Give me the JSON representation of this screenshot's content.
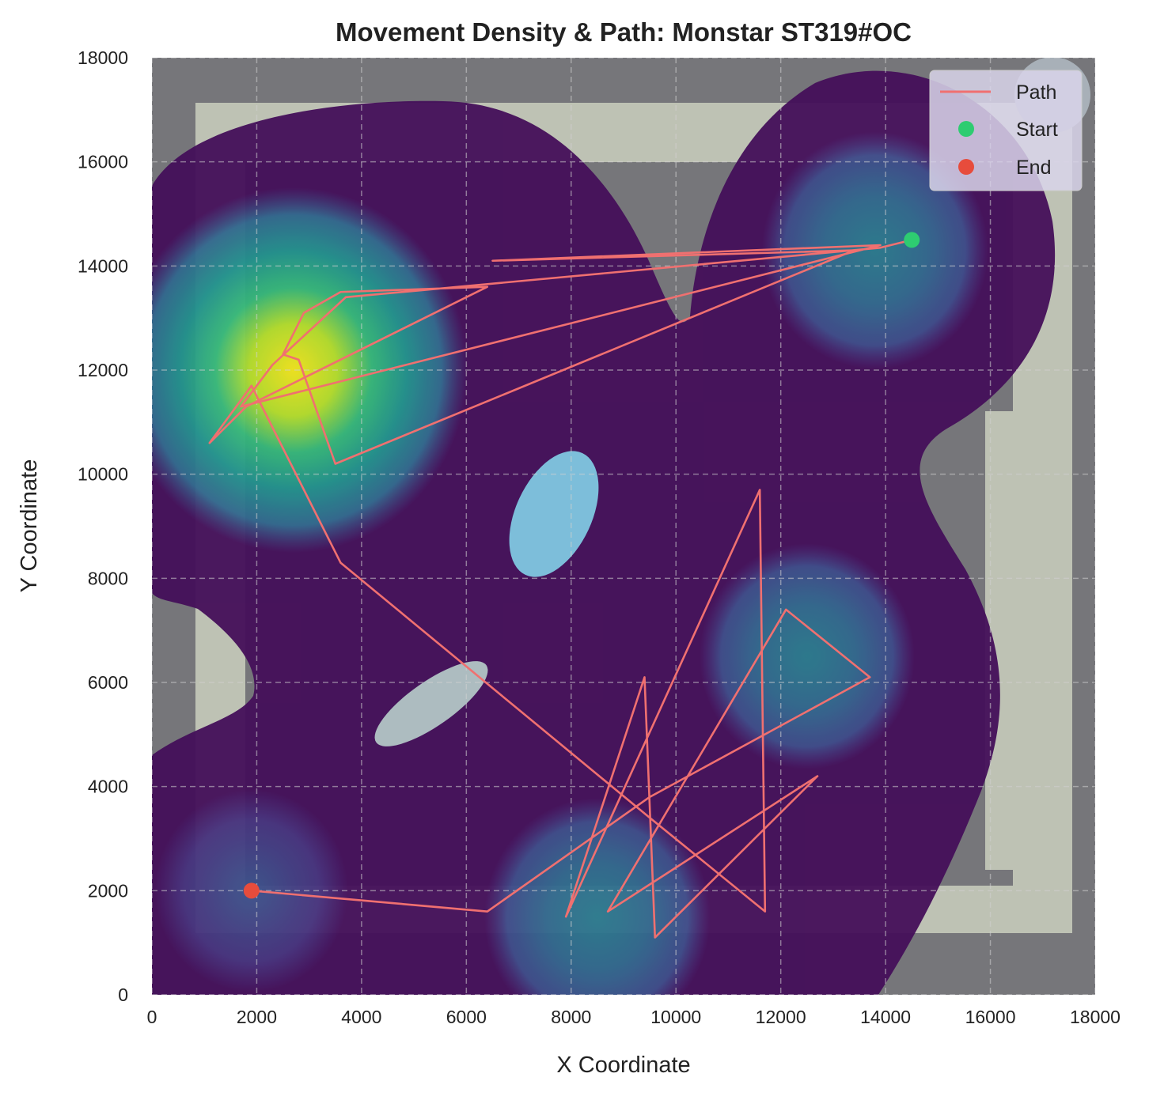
{
  "chart_data": {
    "type": "line",
    "title": "Movement Density & Path: Monstar ST319#OC",
    "xlabel": "X Coordinate",
    "ylabel": "Y Coordinate",
    "xlim": [
      0,
      18000
    ],
    "ylim": [
      0,
      18000
    ],
    "xticks": [
      "0",
      "2000",
      "4000",
      "6000",
      "8000",
      "10000",
      "12000",
      "14000",
      "16000",
      "18000"
    ],
    "yticks": [
      "0",
      "2000",
      "4000",
      "6000",
      "8000",
      "10000",
      "12000",
      "14000",
      "16000",
      "18000"
    ],
    "grid": true,
    "legend_position": "top-right",
    "legend": [
      {
        "label": "Path",
        "kind": "line",
        "color": "#f07070"
      },
      {
        "label": "Start",
        "kind": "marker",
        "color": "#2ecc71"
      },
      {
        "label": "End",
        "kind": "marker",
        "color": "#e74c3c"
      }
    ],
    "background": "map with viewed density heatmap (viridis)",
    "path_color": "#f07070",
    "start": {
      "x": 14500,
      "y": 14500,
      "color": "#2ecc71"
    },
    "end": {
      "x": 1900,
      "y": 2000,
      "color": "#e74c3c"
    },
    "density_peaks": [
      {
        "x": 2700,
        "y": 12000,
        "level": 1.0
      },
      {
        "x": 13800,
        "y": 14300,
        "level": 0.45
      },
      {
        "x": 8500,
        "y": 1500,
        "level": 0.45
      },
      {
        "x": 12500,
        "y": 6500,
        "level": 0.4
      },
      {
        "x": 1900,
        "y": 2000,
        "level": 0.3
      }
    ],
    "path": [
      {
        "x": 14500,
        "y": 14500
      },
      {
        "x": 13900,
        "y": 14350
      },
      {
        "x": 3700,
        "y": 13400
      },
      {
        "x": 2300,
        "y": 12100
      },
      {
        "x": 1700,
        "y": 11300
      },
      {
        "x": 13900,
        "y": 14400
      },
      {
        "x": 6500,
        "y": 14100
      },
      {
        "x": 13400,
        "y": 14300
      },
      {
        "x": 3500,
        "y": 10200
      },
      {
        "x": 2800,
        "y": 12200
      },
      {
        "x": 2500,
        "y": 12300
      },
      {
        "x": 2900,
        "y": 13100
      },
      {
        "x": 3600,
        "y": 13500
      },
      {
        "x": 6400,
        "y": 13600
      },
      {
        "x": 1800,
        "y": 11300
      },
      {
        "x": 1100,
        "y": 10600
      },
      {
        "x": 1900,
        "y": 11700
      },
      {
        "x": 3600,
        "y": 8300
      },
      {
        "x": 9500,
        "y": 3400
      },
      {
        "x": 11700,
        "y": 1600
      },
      {
        "x": 11600,
        "y": 9700
      },
      {
        "x": 7900,
        "y": 1500
      },
      {
        "x": 9400,
        "y": 6100
      },
      {
        "x": 9600,
        "y": 1100
      },
      {
        "x": 12700,
        "y": 4200
      },
      {
        "x": 8700,
        "y": 1600
      },
      {
        "x": 12100,
        "y": 7400
      },
      {
        "x": 13700,
        "y": 6100
      },
      {
        "x": 9500,
        "y": 3800
      },
      {
        "x": 6400,
        "y": 1600
      },
      {
        "x": 1900,
        "y": 2000
      }
    ]
  }
}
